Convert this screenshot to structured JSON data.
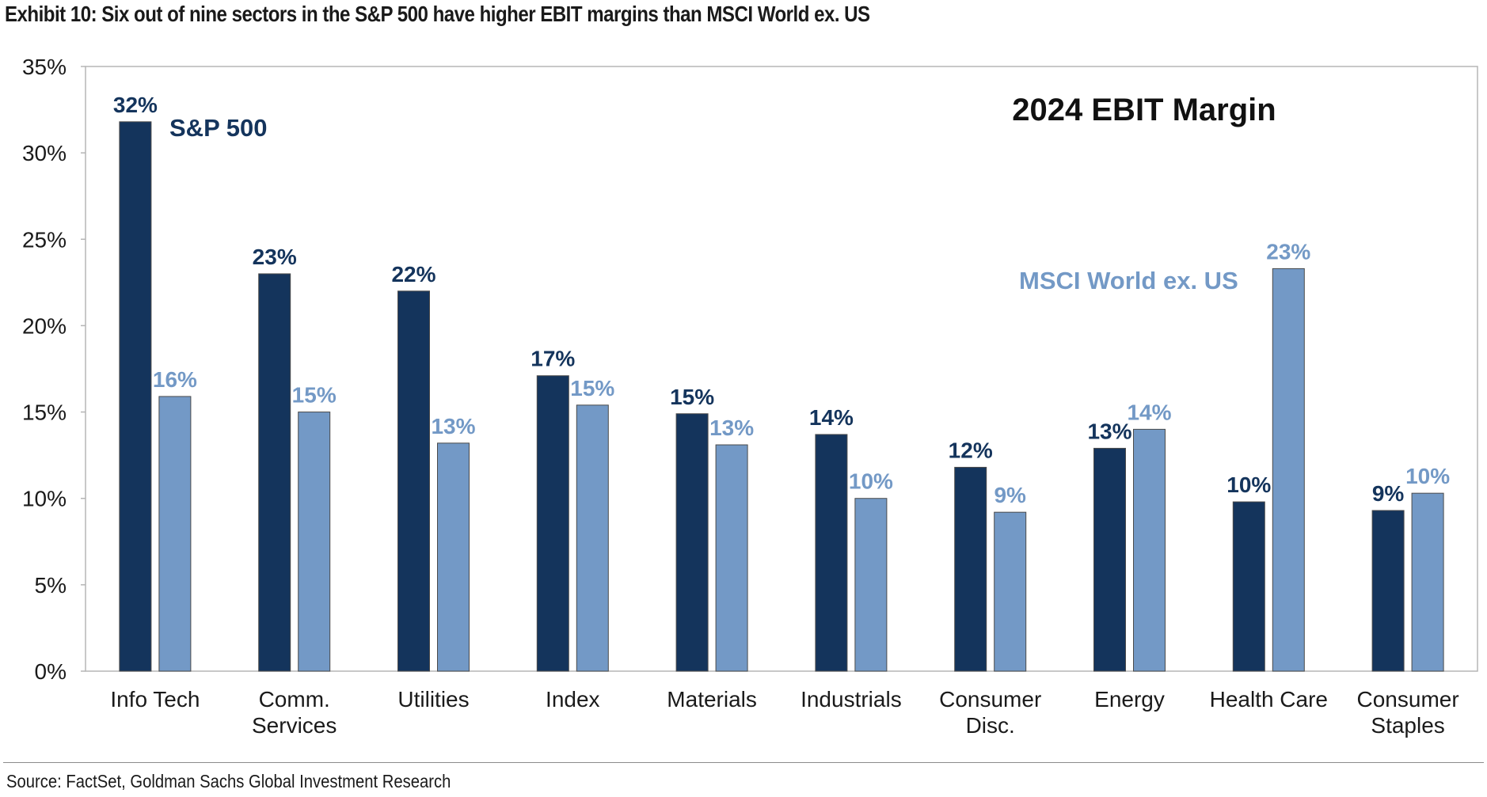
{
  "exhibit_title": "Exhibit 10: Six out of nine sectors in the S&P 500 have higher EBIT margins than MSCI World ex. US",
  "source": "Source: FactSet, Goldman Sachs Global Investment Research",
  "colors": {
    "sp500": "#14345C",
    "msci": "#7399C6",
    "axis_text": "#1a1a1a"
  },
  "chart_data": {
    "type": "bar",
    "title": "2024 EBIT Margin",
    "xlabel": "",
    "ylabel": "",
    "ylim": [
      0,
      35
    ],
    "yticks": [
      0,
      5,
      10,
      15,
      20,
      25,
      30,
      35
    ],
    "ytick_labels": [
      "0%",
      "5%",
      "10%",
      "15%",
      "20%",
      "25%",
      "30%",
      "35%"
    ],
    "grid": false,
    "categories": [
      [
        "Info Tech"
      ],
      [
        "Comm.",
        "Services"
      ],
      [
        "Utilities"
      ],
      [
        "Index"
      ],
      [
        "Materials"
      ],
      [
        "Industrials"
      ],
      [
        "Consumer",
        "Disc."
      ],
      [
        "Energy"
      ],
      [
        "Health Care"
      ],
      [
        "Consumer",
        "Staples"
      ]
    ],
    "series": [
      {
        "name": "S&P 500",
        "values": [
          31.8,
          23.0,
          22.0,
          17.1,
          14.9,
          13.7,
          11.8,
          12.9,
          9.8,
          9.3
        ],
        "labels": [
          "32%",
          "23%",
          "22%",
          "17%",
          "15%",
          "14%",
          "12%",
          "13%",
          "10%",
          "9%"
        ]
      },
      {
        "name": "MSCI World ex. US",
        "values": [
          15.9,
          15.0,
          13.2,
          15.4,
          13.1,
          10.0,
          9.2,
          14.0,
          23.3,
          10.3
        ],
        "labels": [
          "16%",
          "15%",
          "13%",
          "15%",
          "13%",
          "10%",
          "9%",
          "14%",
          "23%",
          "10%"
        ]
      }
    ]
  }
}
